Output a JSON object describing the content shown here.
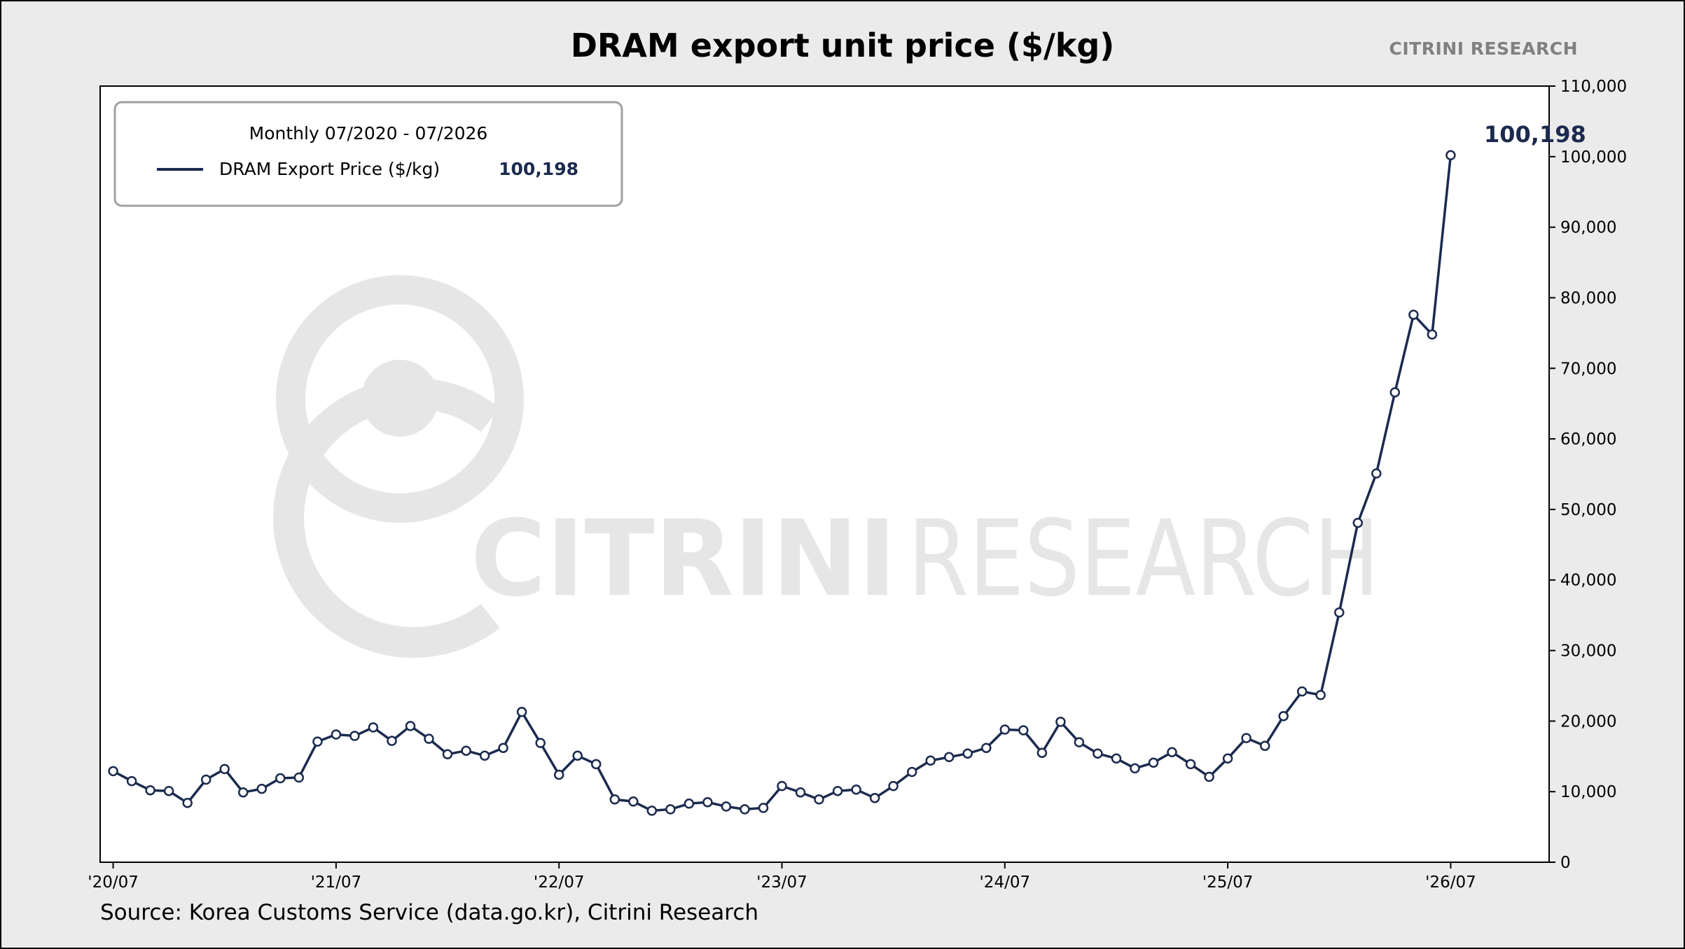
{
  "title": "DRAM export unit price ($/kg)",
  "brand": "CITRINI RESEARCH",
  "source": "Source: Korea Customs Service (data.go.kr), Citrini Research",
  "watermark": {
    "word1": "CITRINI",
    "word2": "RESEARCH",
    "icon": "citrini-logo-icon"
  },
  "colors": {
    "line": "#1b2a4e",
    "background": "#ebebeb",
    "plot": "#ffffff",
    "watermark": "#e6e6e6",
    "brand": "#808080"
  },
  "legend": {
    "title": "Monthly 07/2020 - 07/2026",
    "label": "DRAM Export Price ($/kg)",
    "value": "100,198"
  },
  "last_value_label": "100,198",
  "chart_data": {
    "type": "line",
    "title": "DRAM export unit price ($/kg)",
    "xlabel": "",
    "ylabel": "",
    "ylim": [
      0,
      110000
    ],
    "y_ticks": [
      0,
      10000,
      20000,
      30000,
      40000,
      50000,
      60000,
      70000,
      80000,
      90000,
      100000,
      110000
    ],
    "y_tick_labels": [
      "0",
      "10,000",
      "20,000",
      "30,000",
      "40,000",
      "50,000",
      "60,000",
      "70,000",
      "80,000",
      "90,000",
      "100,000",
      "110,000"
    ],
    "x_ticks": [
      "2020-07",
      "2021-07",
      "2022-07",
      "2023-07",
      "2024-07",
      "2025-07",
      "2026-07"
    ],
    "x_tick_labels": [
      "'20/07",
      "'21/07",
      "'22/07",
      "'23/07",
      "'24/07",
      "'25/07",
      "'26/07"
    ],
    "xlim": [
      "2020-06",
      "2026-12"
    ],
    "y_axis_side": "right",
    "grid": false,
    "legend_position": "top-left",
    "series": [
      {
        "name": "DRAM Export Price ($/kg)",
        "color": "#1b2a4e",
        "marker": "circle",
        "x": [
          "2020-07",
          "2020-08",
          "2020-09",
          "2020-10",
          "2020-11",
          "2020-12",
          "2021-01",
          "2021-02",
          "2021-03",
          "2021-04",
          "2021-05",
          "2021-06",
          "2021-07",
          "2021-08",
          "2021-09",
          "2021-10",
          "2021-11",
          "2021-12",
          "2022-01",
          "2022-02",
          "2022-03",
          "2022-04",
          "2022-05",
          "2022-06",
          "2022-07",
          "2022-08",
          "2022-09",
          "2022-10",
          "2022-11",
          "2022-12",
          "2023-01",
          "2023-02",
          "2023-03",
          "2023-04",
          "2023-05",
          "2023-06",
          "2023-07",
          "2023-08",
          "2023-09",
          "2023-10",
          "2023-11",
          "2023-12",
          "2024-01",
          "2024-02",
          "2024-03",
          "2024-04",
          "2024-05",
          "2024-06",
          "2024-07",
          "2024-08",
          "2024-09",
          "2024-10",
          "2024-11",
          "2024-12",
          "2025-01",
          "2025-02",
          "2025-03",
          "2025-04",
          "2025-05",
          "2025-06",
          "2025-07",
          "2025-08",
          "2025-09",
          "2025-10",
          "2025-11",
          "2025-12",
          "2026-01",
          "2026-02",
          "2026-03",
          "2026-04",
          "2026-05",
          "2026-06",
          "2026-07"
        ],
        "values": [
          12900,
          11500,
          10200,
          10100,
          8400,
          11700,
          13200,
          9900,
          10400,
          11900,
          12000,
          17100,
          18100,
          17900,
          19100,
          17200,
          19300,
          17500,
          15300,
          15800,
          15100,
          16200,
          21300,
          16900,
          12400,
          15100,
          13900,
          8900,
          8600,
          7300,
          7500,
          8300,
          8500,
          7900,
          7500,
          7700,
          10800,
          9900,
          8900,
          10100,
          10300,
          9100,
          10800,
          12800,
          14400,
          14900,
          15400,
          16200,
          18800,
          18700,
          15500,
          19900,
          17000,
          15400,
          14700,
          13300,
          14100,
          15600,
          13900,
          12100,
          14700,
          17600,
          16500,
          20700,
          24200,
          23700,
          35400,
          48100,
          55100,
          66600,
          77600,
          74800,
          100198
        ]
      }
    ]
  }
}
